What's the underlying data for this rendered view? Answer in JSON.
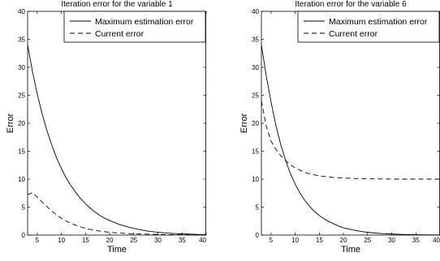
{
  "chart_data": [
    {
      "type": "line",
      "title": "Iteration error for the variable 1",
      "xlabel": "Time",
      "ylabel": "Error",
      "xlim": [
        3,
        40
      ],
      "ylim": [
        0,
        40
      ],
      "xticks": [
        5,
        10,
        15,
        20,
        25,
        30,
        35,
        40
      ],
      "yticks": [
        0,
        5,
        10,
        15,
        20,
        25,
        30,
        35,
        40
      ],
      "grid": false,
      "legend_position": "top-right",
      "series": [
        {
          "name": "Maximum estimation error",
          "style": "solid",
          "x": [
            3,
            4,
            5,
            6,
            7,
            8,
            9,
            10,
            11,
            12,
            13,
            14,
            15,
            16,
            17,
            18,
            19,
            20,
            22,
            24,
            26,
            28,
            30,
            32,
            34,
            36,
            38,
            40
          ],
          "y": [
            34,
            29.3,
            25.2,
            21.7,
            18.7,
            16.1,
            13.8,
            11.9,
            10.2,
            8.8,
            7.6,
            6.5,
            5.6,
            4.8,
            4.1,
            3.5,
            3.0,
            2.6,
            1.9,
            1.4,
            1.0,
            0.7,
            0.5,
            0.35,
            0.25,
            0.18,
            0.12,
            0.08
          ]
        },
        {
          "name": "Current error",
          "style": "dashed",
          "x": [
            3,
            4,
            5,
            6,
            7,
            8,
            9,
            10,
            11,
            12,
            13,
            14,
            15,
            16,
            17,
            18,
            20,
            22,
            24,
            26,
            28,
            30,
            32,
            35,
            40
          ],
          "y": [
            7.2,
            7.6,
            6.8,
            5.9,
            5.1,
            4.3,
            3.6,
            3.0,
            2.5,
            2.1,
            1.75,
            1.45,
            1.2,
            1.0,
            0.85,
            0.7,
            0.5,
            0.36,
            0.27,
            0.2,
            0.15,
            0.11,
            0.08,
            0.05,
            0.03
          ]
        }
      ]
    },
    {
      "type": "line",
      "title": "Iteration error for the variable 6",
      "xlabel": "Time",
      "ylabel": "Error",
      "xlim": [
        3,
        40
      ],
      "ylim": [
        0,
        40
      ],
      "xticks": [
        5,
        10,
        15,
        20,
        25,
        30,
        35,
        40
      ],
      "yticks": [
        0,
        5,
        10,
        15,
        20,
        25,
        30,
        35,
        40
      ],
      "grid": false,
      "legend_position": "top-right",
      "series": [
        {
          "name": "Maximum estimation error",
          "style": "solid",
          "x": [
            3,
            4,
            5,
            6,
            7,
            8,
            9,
            10,
            11,
            12,
            13,
            14,
            15,
            16,
            17,
            18,
            19,
            20,
            22,
            24,
            26,
            28,
            30,
            32,
            34,
            36,
            38,
            40
          ],
          "y": [
            34,
            28.5,
            23.8,
            19.6,
            16.2,
            13.4,
            11.0,
            9.1,
            7.5,
            6.2,
            5.1,
            4.2,
            3.5,
            2.9,
            2.4,
            2.0,
            1.6,
            1.3,
            0.9,
            0.6,
            0.4,
            0.27,
            0.18,
            0.12,
            0.08,
            0.05,
            0.03,
            0.02
          ]
        },
        {
          "name": "Current error",
          "style": "dashed",
          "x": [
            3,
            4,
            5,
            6,
            7,
            8,
            9,
            10,
            11,
            12,
            13,
            14,
            15,
            16,
            17,
            18,
            20,
            22,
            24,
            26,
            28,
            30,
            35,
            40
          ],
          "y": [
            24,
            19.5,
            16.8,
            15.3,
            14.2,
            13.3,
            12.6,
            12.0,
            11.6,
            11.2,
            10.95,
            10.75,
            10.6,
            10.48,
            10.38,
            10.3,
            10.2,
            10.12,
            10.08,
            10.05,
            10.03,
            10.0,
            10.0,
            10.0
          ]
        }
      ]
    }
  ]
}
